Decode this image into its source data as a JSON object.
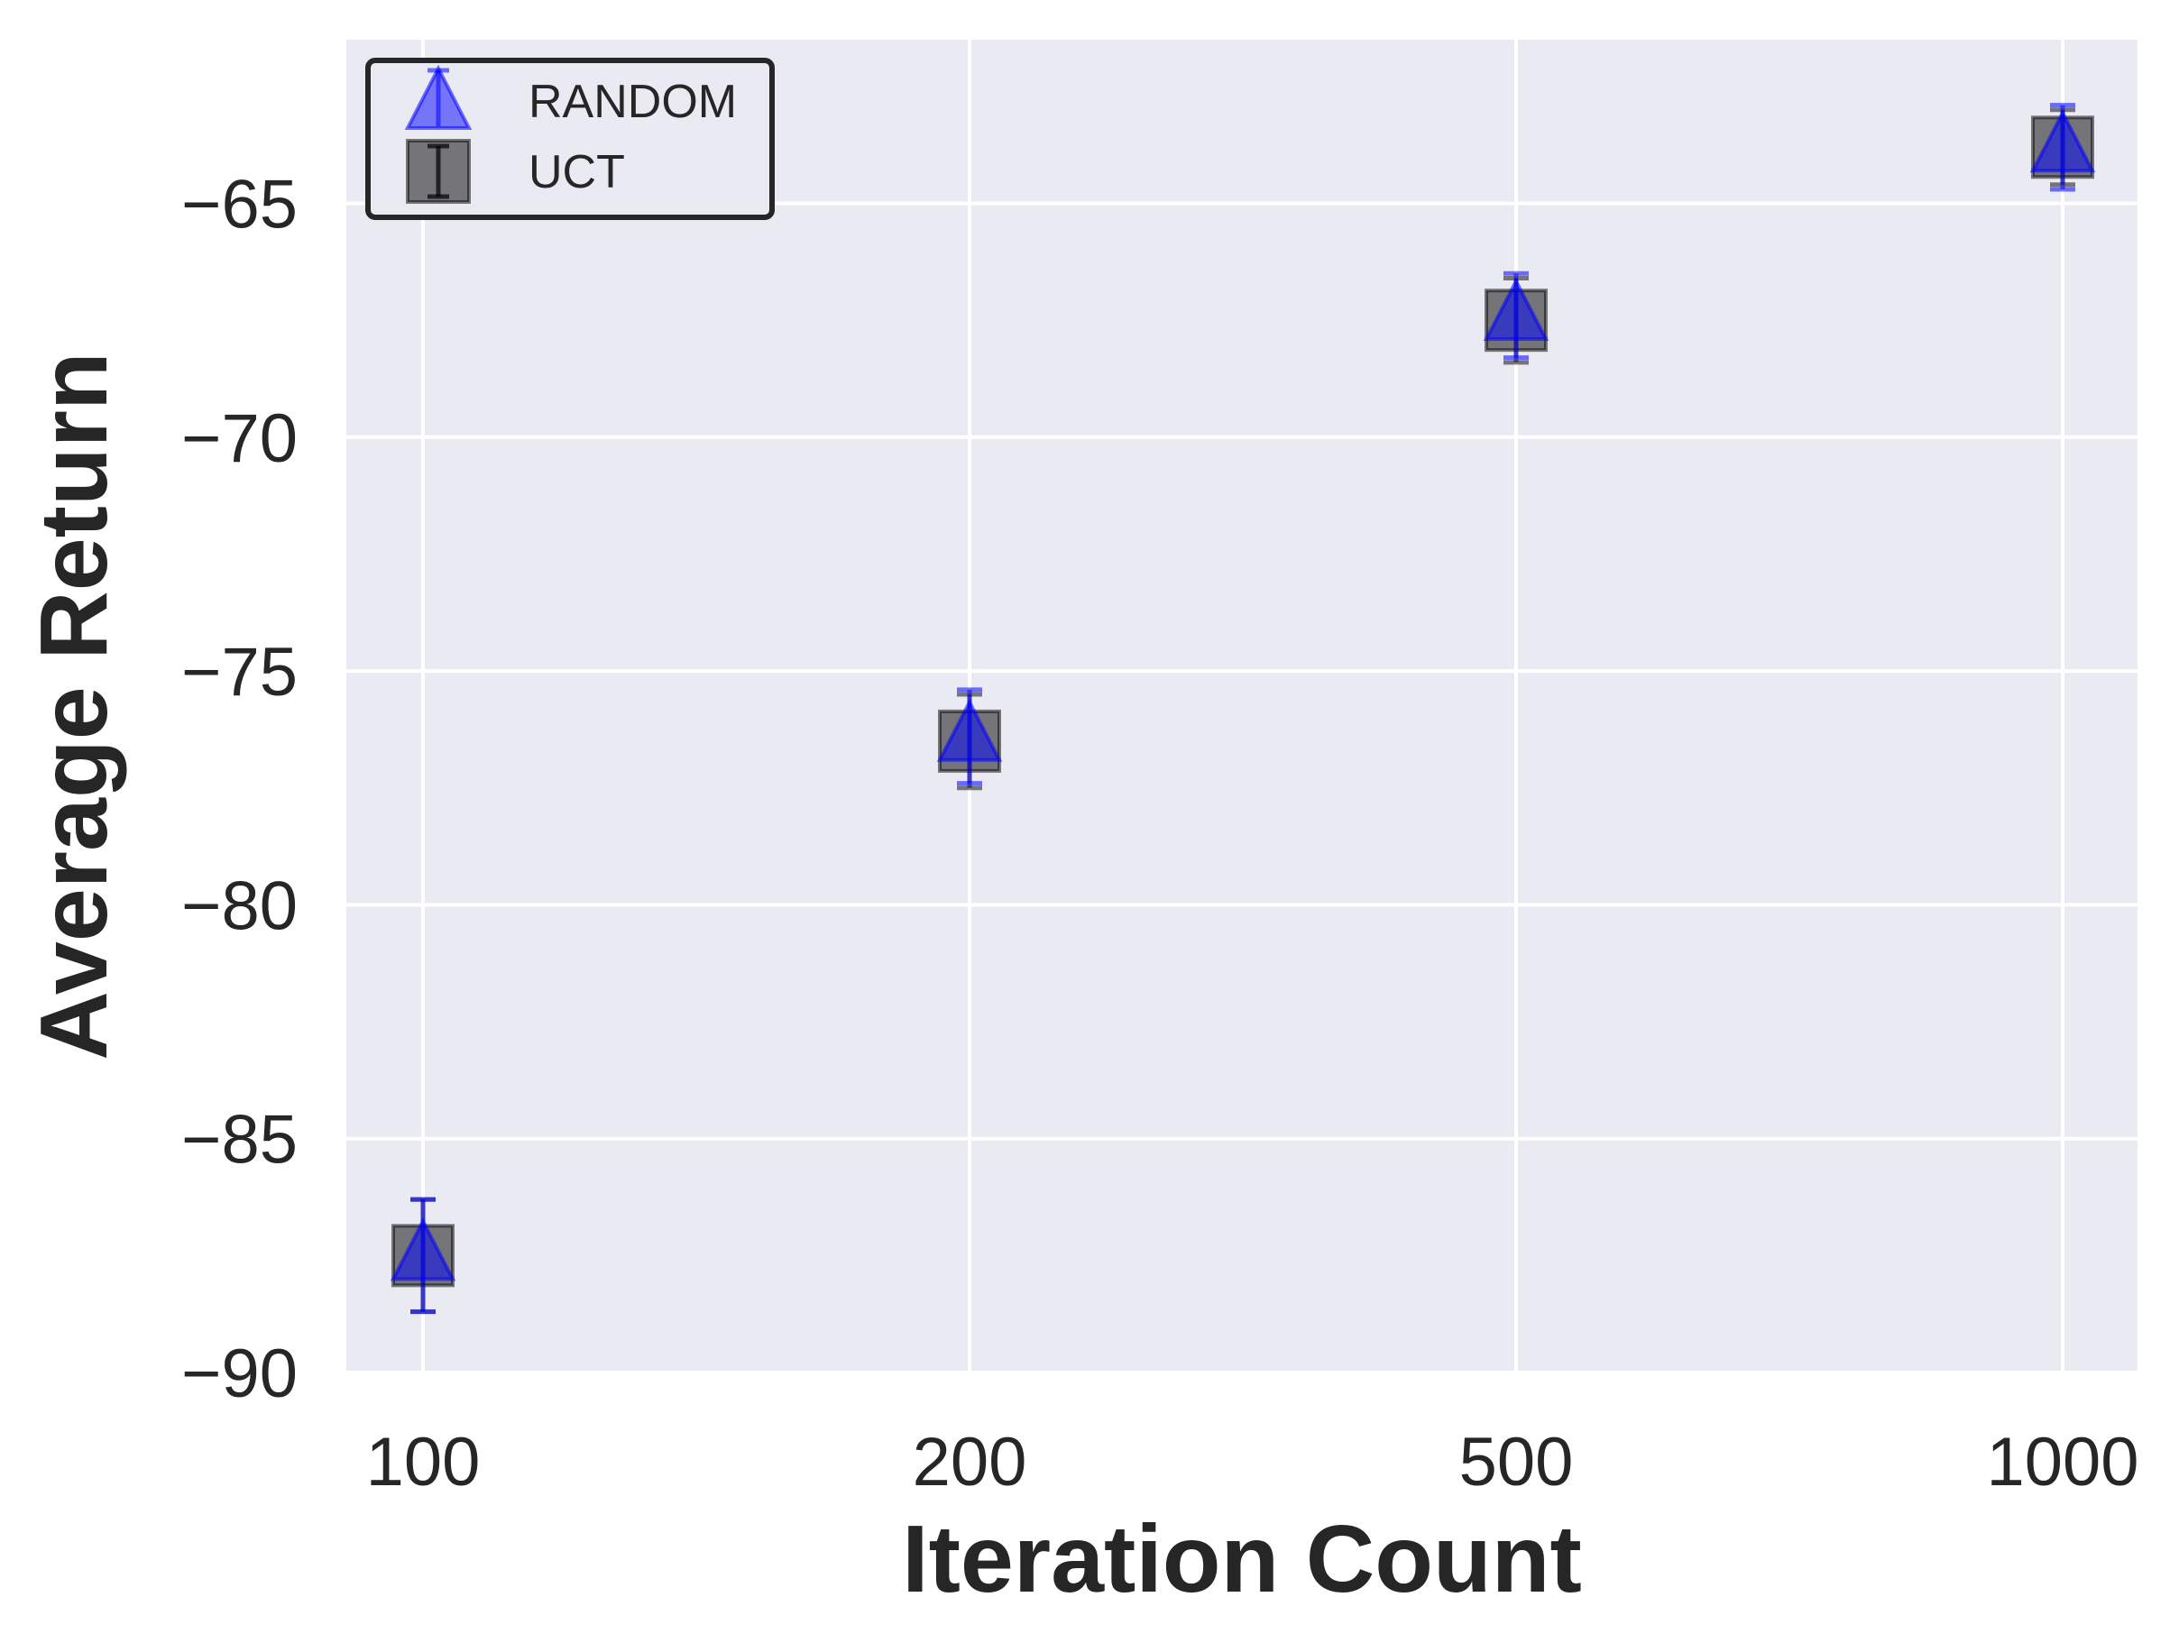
{
  "chart_data": {
    "type": "scatter",
    "title": "",
    "xlabel": "Iteration Count",
    "ylabel": "Average Return",
    "categories": [
      "100",
      "200",
      "500",
      "1000"
    ],
    "yticks": [
      "−90",
      "−85",
      "−80",
      "−75",
      "−70",
      "−65"
    ],
    "ytick_values": [
      -90,
      -85,
      -80,
      -75,
      -70,
      -65
    ],
    "ylim": [
      -90,
      -61.5
    ],
    "grid": true,
    "legend": "top-left",
    "series": [
      {
        "name": "RANDOM",
        "marker": "triangle",
        "color": "#0000ff",
        "values": [
          -87.5,
          -76.4,
          -67.4,
          -63.8
        ],
        "err": [
          1.2,
          1.0,
          0.9,
          0.9
        ]
      },
      {
        "name": "UCT",
        "marker": "square",
        "color": "#000000",
        "values": [
          -87.5,
          -76.5,
          -67.5,
          -63.8
        ],
        "err": [
          1.2,
          1.0,
          0.9,
          0.8
        ]
      }
    ],
    "colors": {
      "plot_background": "#eaeaf2",
      "grid": "#ffffff",
      "text": "#262626"
    }
  }
}
